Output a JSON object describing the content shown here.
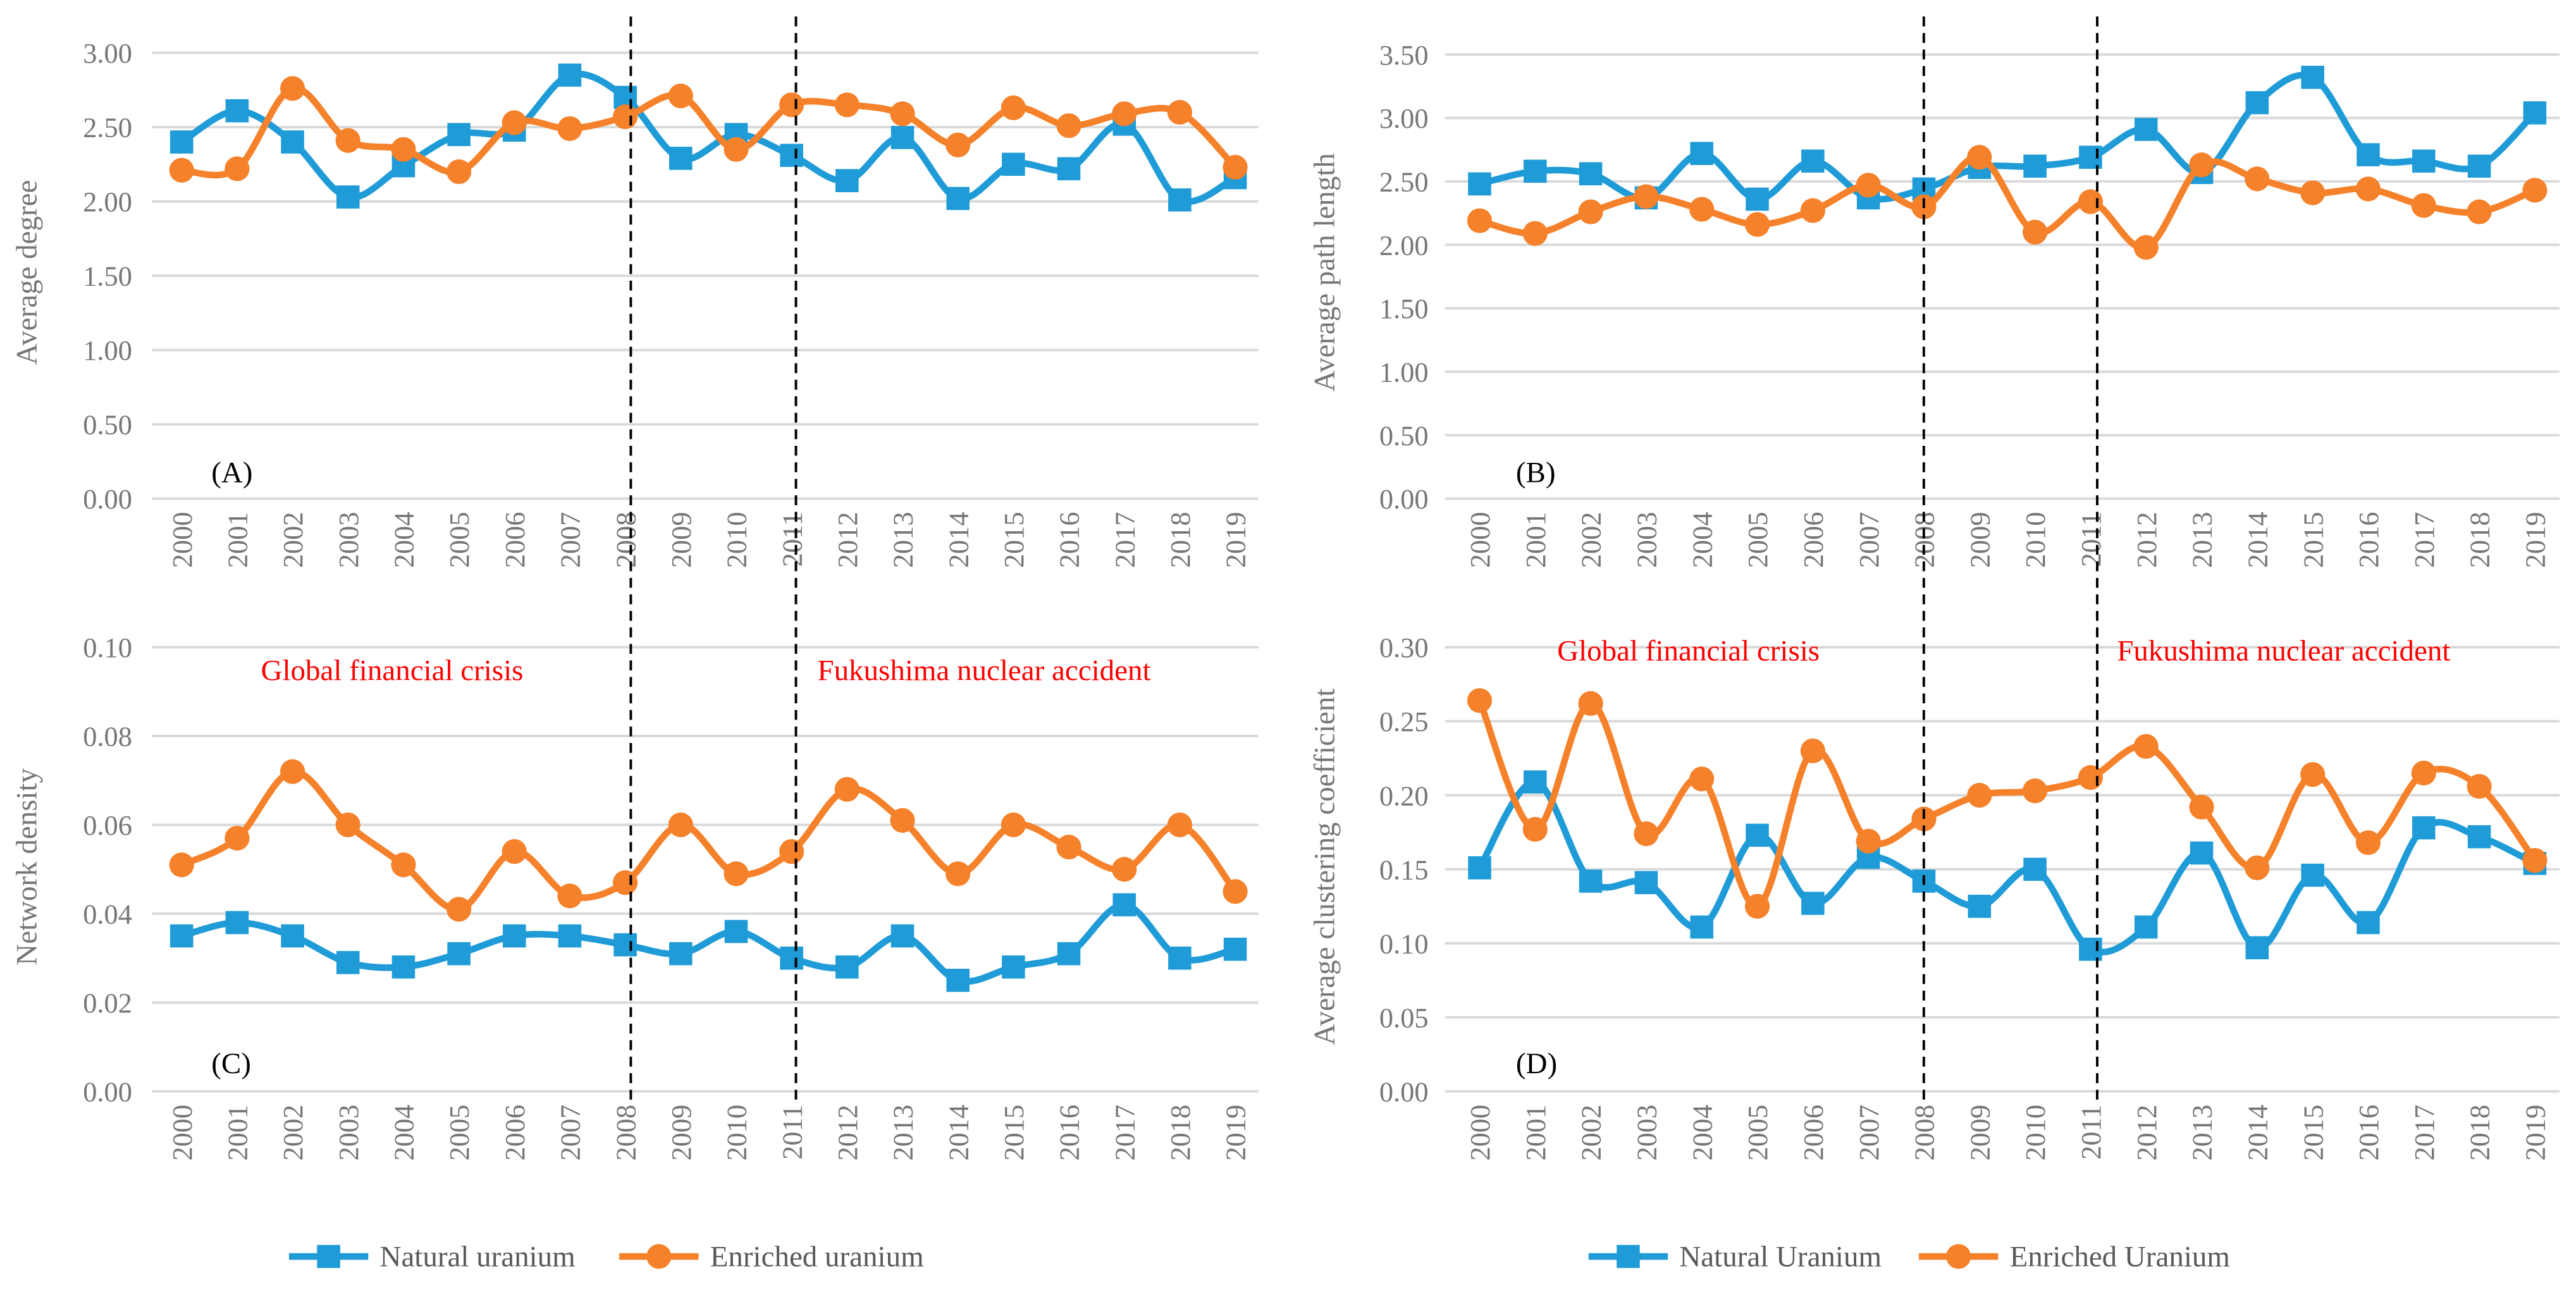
{
  "colors": {
    "natural": "#1f9bd7",
    "enriched": "#f5812a",
    "grid": "#d9d9d9",
    "annotation": "#ff0000"
  },
  "years": [
    "2000",
    "2001",
    "2002",
    "2003",
    "2004",
    "2005",
    "2006",
    "2007",
    "2008",
    "2009",
    "2010",
    "2011",
    "2012",
    "2013",
    "2014",
    "2015",
    "2016",
    "2017",
    "2018",
    "2019"
  ],
  "legends": {
    "left": [
      "Natural uranium",
      "Enriched uranium"
    ],
    "right": [
      "Natural Uranium",
      "Enriched Uranium"
    ]
  },
  "annotations": {
    "crisis": "Global financial crisis",
    "fukushima": "Fukushima nuclear accident"
  },
  "event_years": [
    "2008",
    "2011"
  ],
  "chart_data": [
    {
      "type": "line",
      "panel_label": "(A)",
      "ylabel": "Average degree",
      "xlabel": "",
      "ylim": [
        0,
        3
      ],
      "ystep": 0.5,
      "decimals": 2,
      "grid": true,
      "series": [
        {
          "name": "Natural uranium",
          "values": [
            2.4,
            2.61,
            2.4,
            2.03,
            2.24,
            2.45,
            2.48,
            2.85,
            2.7,
            2.29,
            2.45,
            2.31,
            2.14,
            2.43,
            2.02,
            2.25,
            2.22,
            2.52,
            2.01,
            2.16
          ]
        },
        {
          "name": "Enriched uranium",
          "values": [
            2.21,
            2.22,
            2.76,
            2.41,
            2.35,
            2.2,
            2.53,
            2.49,
            2.57,
            2.71,
            2.35,
            2.65,
            2.65,
            2.59,
            2.38,
            2.63,
            2.51,
            2.59,
            2.6,
            2.23
          ]
        }
      ]
    },
    {
      "type": "line",
      "panel_label": "(B)",
      "ylabel": "Average path length",
      "xlabel": "",
      "ylim": [
        0,
        3.5
      ],
      "ystep": 0.5,
      "decimals": 2,
      "grid": true,
      "series": [
        {
          "name": "Natural uranium",
          "values": [
            2.48,
            2.58,
            2.56,
            2.37,
            2.72,
            2.36,
            2.66,
            2.37,
            2.44,
            2.61,
            2.62,
            2.69,
            2.91,
            2.57,
            3.12,
            3.32,
            2.71,
            2.66,
            2.62,
            3.04
          ]
        },
        {
          "name": "Enriched uranium",
          "values": [
            2.19,
            2.09,
            2.26,
            2.38,
            2.28,
            2.16,
            2.27,
            2.47,
            2.3,
            2.69,
            2.1,
            2.34,
            1.98,
            2.63,
            2.52,
            2.41,
            2.44,
            2.31,
            2.26,
            2.43
          ]
        }
      ]
    },
    {
      "type": "line",
      "panel_label": "(C)",
      "ylabel": "Network density",
      "xlabel": "",
      "ylim": [
        0,
        0.1
      ],
      "ystep": 0.02,
      "decimals": 2,
      "grid": true,
      "series": [
        {
          "name": "Natural uranium",
          "values": [
            0.035,
            0.038,
            0.035,
            0.029,
            0.028,
            0.031,
            0.035,
            0.035,
            0.033,
            0.031,
            0.036,
            0.03,
            0.028,
            0.035,
            0.025,
            0.028,
            0.031,
            0.042,
            0.03,
            0.032
          ]
        },
        {
          "name": "Enriched uranium",
          "values": [
            0.051,
            0.057,
            0.072,
            0.06,
            0.051,
            0.041,
            0.054,
            0.044,
            0.047,
            0.06,
            0.049,
            0.054,
            0.068,
            0.061,
            0.049,
            0.06,
            0.055,
            0.05,
            0.06,
            0.045
          ]
        }
      ]
    },
    {
      "type": "line",
      "panel_label": "(D)",
      "ylabel": "Average clustering coefficient",
      "xlabel": "",
      "ylim": [
        0,
        0.3
      ],
      "ystep": 0.05,
      "decimals": 2,
      "grid": true,
      "series": [
        {
          "name": "Natural Uranium",
          "values": [
            0.151,
            0.209,
            0.142,
            0.141,
            0.111,
            0.173,
            0.127,
            0.158,
            0.142,
            0.125,
            0.15,
            0.096,
            0.111,
            0.161,
            0.097,
            0.146,
            0.114,
            0.178,
            0.172,
            0.154
          ]
        },
        {
          "name": "Enriched Uranium",
          "values": [
            0.264,
            0.177,
            0.262,
            0.174,
            0.211,
            0.125,
            0.23,
            0.169,
            0.184,
            0.2,
            0.203,
            0.212,
            0.233,
            0.192,
            0.151,
            0.214,
            0.168,
            0.215,
            0.206,
            0.156
          ]
        }
      ]
    }
  ]
}
